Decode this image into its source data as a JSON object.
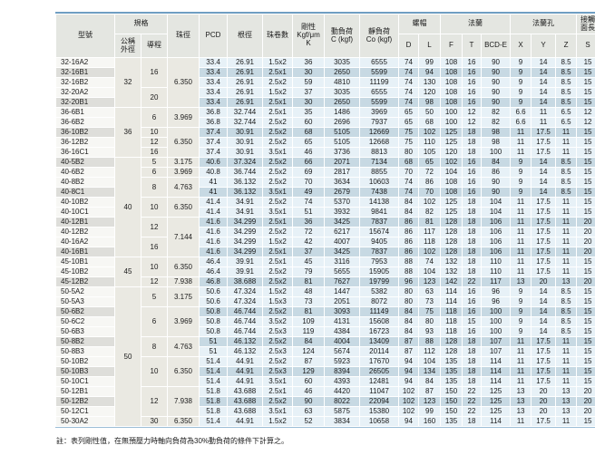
{
  "header": {
    "model": "型號",
    "spec": "規格",
    "spec_od_lines": [
      "公稱",
      "外徑"
    ],
    "spec_lead": "導程",
    "ball_dia": "珠徑",
    "pcd": "PCD",
    "root_dia": "根徑",
    "circuits": "珠卷數",
    "stiffness_lines": [
      "剛性",
      "Kgf/μm",
      "K"
    ],
    "dynamic_load_lines": [
      "動負荷",
      "C (kgf)"
    ],
    "static_load_lines": [
      "靜負荷",
      "Co (kgf)"
    ],
    "nut": "螺帽",
    "flange": "法蘭",
    "flange_holes": "法蘭孔",
    "contact_length_lines": [
      "接觸",
      "面長"
    ],
    "sub_columns": [
      "D",
      "L",
      "F",
      "T",
      "BCD-E",
      "X",
      "Y",
      "Z",
      "S"
    ]
  },
  "rows": [
    {
      "model": "32-16A2",
      "od": "32",
      "od_rs": 5,
      "lead": "16",
      "lead_rs": 3,
      "ball": "6.350",
      "ball_rs": 5,
      "v": [
        "33.4",
        "26.91",
        "1.5x2",
        "36",
        "3035",
        "6555",
        "74",
        "99",
        "108",
        "16",
        "90",
        "9",
        "14",
        "8.5",
        "15"
      ]
    },
    {
      "model": "32-16B1",
      "v": [
        "33.4",
        "26.91",
        "2.5x1",
        "30",
        "2650",
        "5599",
        "74",
        "94",
        "108",
        "16",
        "90",
        "9",
        "14",
        "8.5",
        "15"
      ]
    },
    {
      "model": "32-16B2",
      "v": [
        "33.4",
        "26.91",
        "2.5x2",
        "59",
        "4810",
        "11199",
        "74",
        "130",
        "108",
        "16",
        "90",
        "9",
        "14",
        "8.5",
        "15"
      ]
    },
    {
      "model": "32-20A2",
      "lead": "20",
      "lead_rs": 2,
      "v": [
        "33.4",
        "26.91",
        "1.5x2",
        "37",
        "3035",
        "6555",
        "74",
        "120",
        "108",
        "16",
        "90",
        "9",
        "14",
        "8.5",
        "15"
      ]
    },
    {
      "model": "32-20B1",
      "v": [
        "33.4",
        "26.91",
        "2.5x1",
        "30",
        "2650",
        "5599",
        "74",
        "98",
        "108",
        "16",
        "90",
        "9",
        "14",
        "8.5",
        "15"
      ]
    },
    {
      "model": "36-6B1",
      "od": "36",
      "od_rs": 5,
      "lead": "6",
      "lead_rs": 2,
      "ball": "3.969",
      "ball_rs": 2,
      "v": [
        "36.8",
        "32.744",
        "2.5x1",
        "35",
        "1486",
        "3969",
        "65",
        "50",
        "100",
        "12",
        "82",
        "6.6",
        "11",
        "6.5",
        "12"
      ]
    },
    {
      "model": "36-6B2",
      "v": [
        "36.8",
        "32.744",
        "2.5x2",
        "60",
        "2696",
        "7937",
        "65",
        "68",
        "100",
        "12",
        "82",
        "6.6",
        "11",
        "6.5",
        "12"
      ]
    },
    {
      "model": "36-10B2",
      "lead": "10",
      "lead_rs": 1,
      "ball": "6.350",
      "ball_rs": 3,
      "v": [
        "37.4",
        "30.91",
        "2.5x2",
        "68",
        "5105",
        "12669",
        "75",
        "102",
        "125",
        "18",
        "98",
        "11",
        "17.5",
        "11",
        "15"
      ]
    },
    {
      "model": "36-12B2",
      "lead": "12",
      "lead_rs": 1,
      "v": [
        "37.4",
        "30.91",
        "2.5x2",
        "65",
        "5105",
        "12668",
        "75",
        "110",
        "125",
        "18",
        "98",
        "11",
        "17.5",
        "11",
        "15"
      ]
    },
    {
      "model": "36-16C1",
      "lead": "16",
      "lead_rs": 1,
      "v": [
        "37.4",
        "30.91",
        "3.5x1",
        "46",
        "3736",
        "8813",
        "80",
        "105",
        "120",
        "18",
        "100",
        "11",
        "17.5",
        "11",
        "15"
      ]
    },
    {
      "model": "40-5B2",
      "od": "40",
      "od_rs": 10,
      "lead": "5",
      "lead_rs": 1,
      "ball": "3.175",
      "ball_rs": 1,
      "v": [
        "40.6",
        "37.324",
        "2.5x2",
        "66",
        "2071",
        "7134",
        "68",
        "65",
        "102",
        "16",
        "84",
        "9",
        "14",
        "8.5",
        "15"
      ]
    },
    {
      "model": "40-6B2",
      "lead": "6",
      "lead_rs": 1,
      "ball": "3.969",
      "ball_rs": 1,
      "v": [
        "40.8",
        "36.744",
        "2.5x2",
        "69",
        "2817",
        "8855",
        "70",
        "72",
        "104",
        "16",
        "86",
        "9",
        "14",
        "8.5",
        "15"
      ]
    },
    {
      "model": "40-8B2",
      "lead": "8",
      "lead_rs": 2,
      "ball": "4.763",
      "ball_rs": 2,
      "v": [
        "41",
        "36.132",
        "2.5x2",
        "70",
        "3634",
        "10603",
        "74",
        "86",
        "108",
        "16",
        "90",
        "9",
        "14",
        "8.5",
        "15"
      ]
    },
    {
      "model": "40-8C1",
      "v": [
        "41",
        "36.132",
        "3.5x1",
        "49",
        "2679",
        "7438",
        "74",
        "70",
        "108",
        "16",
        "90",
        "9",
        "14",
        "8.5",
        "15"
      ]
    },
    {
      "model": "40-10B2",
      "lead": "10",
      "lead_rs": 2,
      "ball": "6.350",
      "ball_rs": 2,
      "v": [
        "41.4",
        "34.91",
        "2.5x2",
        "74",
        "5370",
        "14138",
        "84",
        "102",
        "125",
        "18",
        "104",
        "11",
        "17.5",
        "11",
        "15"
      ]
    },
    {
      "model": "40-10C1",
      "v": [
        "41.4",
        "34.91",
        "3.5x1",
        "51",
        "3932",
        "9841",
        "84",
        "82",
        "125",
        "18",
        "104",
        "11",
        "17.5",
        "11",
        "15"
      ]
    },
    {
      "model": "40-12B1",
      "lead": "12",
      "lead_rs": 2,
      "ball": "7.144",
      "ball_rs": 4,
      "v": [
        "41.6",
        "34.299",
        "2.5x1",
        "36",
        "3425",
        "7837",
        "86",
        "81",
        "128",
        "18",
        "106",
        "11",
        "17.5",
        "11",
        "20"
      ]
    },
    {
      "model": "40-12B2",
      "v": [
        "41.6",
        "34.299",
        "2.5x2",
        "72",
        "6217",
        "15674",
        "86",
        "117",
        "128",
        "18",
        "106",
        "11",
        "17.5",
        "11",
        "20"
      ]
    },
    {
      "model": "40-16A2",
      "lead": "16",
      "lead_rs": 2,
      "v": [
        "41.6",
        "34.299",
        "1.5x2",
        "42",
        "4007",
        "9405",
        "86",
        "118",
        "128",
        "18",
        "106",
        "11",
        "17.5",
        "11",
        "20"
      ]
    },
    {
      "model": "40-16B1",
      "v": [
        "41.6",
        "34.299",
        "2.5x1",
        "37",
        "3425",
        "7837",
        "86",
        "102",
        "128",
        "18",
        "106",
        "11",
        "17.5",
        "11",
        "20"
      ]
    },
    {
      "model": "45-10B1",
      "od": "45",
      "od_rs": 3,
      "lead": "10",
      "lead_rs": 2,
      "ball": "6.350",
      "ball_rs": 2,
      "v": [
        "46.4",
        "39.91",
        "2.5x1",
        "45",
        "3116",
        "7953",
        "88",
        "74",
        "132",
        "18",
        "110",
        "11",
        "17.5",
        "11",
        "15"
      ]
    },
    {
      "model": "45-10B2",
      "v": [
        "46.4",
        "39.91",
        "2.5x2",
        "79",
        "5655",
        "15905",
        "88",
        "104",
        "132",
        "18",
        "110",
        "11",
        "17.5",
        "11",
        "15"
      ]
    },
    {
      "model": "45-12B2",
      "lead": "12",
      "lead_rs": 1,
      "ball": "7.938",
      "ball_rs": 1,
      "v": [
        "46.8",
        "38.688",
        "2.5x2",
        "81",
        "7627",
        "19799",
        "96",
        "123",
        "142",
        "22",
        "117",
        "13",
        "20",
        "13",
        "20"
      ]
    },
    {
      "model": "50-5A2",
      "od": "50",
      "od_rs": 14,
      "lead": "5",
      "lead_rs": 2,
      "ball": "3.175",
      "ball_rs": 2,
      "v": [
        "50.6",
        "47.324",
        "1.5x2",
        "48",
        "1447",
        "5382",
        "80",
        "63",
        "114",
        "16",
        "96",
        "9",
        "14",
        "8.5",
        "15"
      ]
    },
    {
      "model": "50-5A3",
      "v": [
        "50.6",
        "47.324",
        "1.5x3",
        "73",
        "2051",
        "8072",
        "80",
        "73",
        "114",
        "16",
        "96",
        "9",
        "14",
        "8.5",
        "15"
      ]
    },
    {
      "model": "50-6B2",
      "lead": "6",
      "lead_rs": 3,
      "ball": "3.969",
      "ball_rs": 3,
      "v": [
        "50.8",
        "46.744",
        "2.5x2",
        "81",
        "3093",
        "11149",
        "84",
        "75",
        "118",
        "16",
        "100",
        "9",
        "14",
        "8.5",
        "15"
      ]
    },
    {
      "model": "50-6C2",
      "v": [
        "50.8",
        "46.744",
        "3.5x2",
        "109",
        "4131",
        "15608",
        "84",
        "80",
        "118",
        "15",
        "100",
        "9",
        "14",
        "8.5",
        "15"
      ]
    },
    {
      "model": "50-6B3",
      "v": [
        "50.8",
        "46.744",
        "2.5x3",
        "119",
        "4384",
        "16723",
        "84",
        "93",
        "118",
        "16",
        "100",
        "9",
        "14",
        "8.5",
        "15"
      ]
    },
    {
      "model": "50-8B2",
      "lead": "8",
      "lead_rs": 2,
      "ball": "4.763",
      "ball_rs": 2,
      "v": [
        "51",
        "46.132",
        "2.5x2",
        "84",
        "4004",
        "13409",
        "87",
        "88",
        "128",
        "18",
        "107",
        "11",
        "17.5",
        "11",
        "15"
      ]
    },
    {
      "model": "50-8B3",
      "v": [
        "51",
        "46.132",
        "2.5x3",
        "124",
        "5674",
        "20114",
        "87",
        "112",
        "128",
        "18",
        "107",
        "11",
        "17.5",
        "11",
        "15"
      ]
    },
    {
      "model": "50-10B2",
      "lead": "10",
      "lead_rs": 3,
      "ball": "6.350",
      "ball_rs": 3,
      "v": [
        "51.4",
        "44.91",
        "2.5x2",
        "87",
        "5923",
        "17670",
        "94",
        "104",
        "135",
        "18",
        "114",
        "11",
        "17.5",
        "11",
        "15"
      ]
    },
    {
      "model": "50-10B3",
      "v": [
        "51.4",
        "44.91",
        "2.5x3",
        "129",
        "8394",
        "26505",
        "94",
        "134",
        "135",
        "18",
        "114",
        "11",
        "17.5",
        "11",
        "15"
      ]
    },
    {
      "model": "50-10C1",
      "v": [
        "51.4",
        "44.91",
        "3.5x1",
        "60",
        "4393",
        "12481",
        "94",
        "84",
        "135",
        "18",
        "114",
        "11",
        "17.5",
        "11",
        "15"
      ]
    },
    {
      "model": "50-12B1",
      "lead": "12",
      "lead_rs": 3,
      "ball": "7.938",
      "ball_rs": 3,
      "v": [
        "51.8",
        "43.688",
        "2.5x1",
        "46",
        "4420",
        "11047",
        "102",
        "87",
        "150",
        "22",
        "125",
        "13",
        "20",
        "13",
        "20"
      ]
    },
    {
      "model": "50-12B2",
      "v": [
        "51.8",
        "43.688",
        "2.5x2",
        "90",
        "8022",
        "22094",
        "102",
        "123",
        "150",
        "22",
        "125",
        "13",
        "20",
        "13",
        "20"
      ]
    },
    {
      "model": "50-12C1",
      "v": [
        "51.8",
        "43.688",
        "3.5x1",
        "63",
        "5875",
        "15380",
        "102",
        "99",
        "150",
        "22",
        "125",
        "13",
        "20",
        "13",
        "20"
      ]
    },
    {
      "model": "50-30A2",
      "lead": "30",
      "lead_rs": 1,
      "ball": "6.350",
      "ball_rs": 1,
      "v": [
        "51.4",
        "44.91",
        "1.5x2",
        "52",
        "3834",
        "10658",
        "94",
        "160",
        "135",
        "18",
        "114",
        "11",
        "17.5",
        "11",
        "15"
      ]
    }
  ],
  "footnote": "註：表列剛性值，在無預壓力時軸向負荷為30%動負荷的條件下計算之。",
  "colors": {
    "header_bg": "#e4e6e1",
    "spec_bg": "#eae9e2",
    "model_light": "#f7f7f4",
    "model_dark": "#dededa",
    "row_light": "#e7f1f7",
    "row_dark": "#c7d9e3",
    "border_blue": "#6f9ec2",
    "border_blue_light": "#9bbdd6"
  }
}
